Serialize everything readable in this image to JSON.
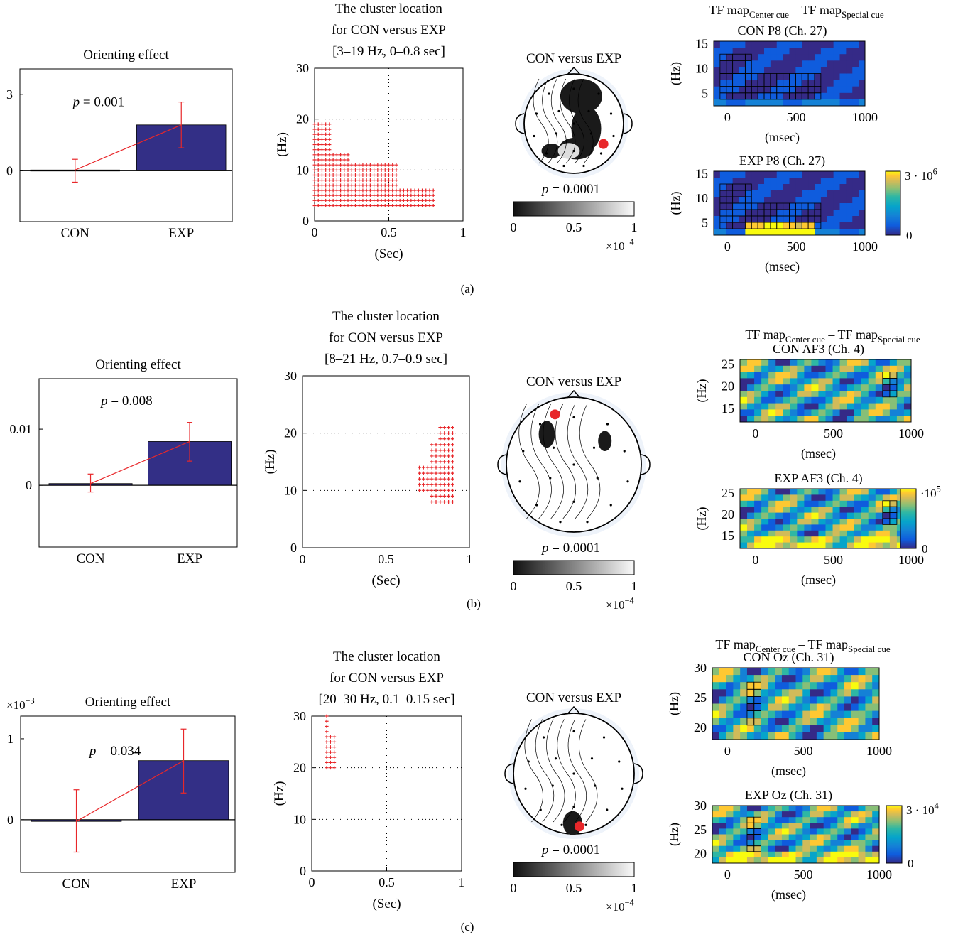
{
  "colors": {
    "bar": "#332f86",
    "cluster": "#e8272a",
    "errorbar": "#e8272a",
    "electrode": "#e8272a",
    "parula": [
      "#352a87",
      "#0f5cdd",
      "#1481d6",
      "#06a4ca",
      "#2eb7a4",
      "#87bf77",
      "#d1bb59",
      "#fec832",
      "#f9fb0e"
    ]
  },
  "panels": [
    {
      "label": "(a)",
      "bar": {
        "title": "Orienting effect",
        "categories": [
          "CON",
          "EXP"
        ],
        "values": [
          0.03,
          1.8
        ],
        "err_low": [
          -0.45,
          0.9
        ],
        "err_high": [
          0.45,
          2.7
        ],
        "ylim": [
          -2,
          4
        ],
        "yticks": [
          0,
          3
        ],
        "ytick_labels": [
          "0",
          "3"
        ],
        "p_text": "= 0.001",
        "p_pos": [
          0.35,
          2.7
        ]
      },
      "cluster": {
        "title_lines": [
          "The cluster location",
          "for CON versus EXP",
          "[3–19 Hz, 0–0.8 sec]"
        ],
        "xlabel": "(Sec)",
        "ylabel": "(Hz)",
        "xlim": [
          0,
          1
        ],
        "ylim": [
          0,
          30
        ],
        "xticks": [
          0,
          0.5,
          1
        ],
        "xtick_labels": [
          "0",
          "0.5",
          "1"
        ],
        "yticks": [
          0,
          10,
          20,
          30
        ],
        "ytick_labels": [
          "0",
          "10",
          "20",
          "30"
        ],
        "gridlines_x": [
          0.5
        ],
        "gridlines_y": [
          10,
          20
        ],
        "freq_range": [
          3,
          19
        ],
        "time_range": [
          0,
          0.8
        ]
      },
      "topo": {
        "title": "CON versus EXP",
        "p_text": "= 0.0001",
        "cbar_ticks": [
          "0",
          "0.5",
          "1"
        ],
        "cbar_exp": "×10",
        "cbar_exp_power": "−4",
        "electrode": [
          0.82,
          0.72
        ]
      },
      "tf": {
        "header": [
          "TF map",
          "Center cue",
          " – TF map",
          "Special cue"
        ],
        "maps": [
          {
            "title": "CON P8 (Ch. 27)",
            "ylabel": "(Hz)",
            "xlabel": "(msec)",
            "ytick_labels": [
              "5",
              "10",
              "15"
            ],
            "yticks": [
              5,
              10,
              15
            ],
            "ylim": [
              2.5,
              15.5
            ],
            "xticks": [
              0,
              500,
              1000
            ],
            "xtick_labels": [
              "0",
              "500",
              "1000"
            ],
            "xlim": [
              -100,
              1000
            ]
          },
          {
            "title": "EXP P8 (Ch. 27)",
            "ylabel": "(Hz)",
            "xlabel": "(msec)",
            "ytick_labels": [
              "5",
              "10",
              "15"
            ],
            "yticks": [
              5,
              10,
              15
            ],
            "ylim": [
              2.5,
              15.5
            ],
            "xticks": [
              0,
              500,
              1000
            ],
            "xtick_labels": [
              "0",
              "500",
              "1000"
            ],
            "xlim": [
              -100,
              1000
            ]
          }
        ],
        "cbar_top": "3 · 10",
        "cbar_top_power": "6",
        "cbar_bottom": "0"
      }
    },
    {
      "label": "(b)",
      "bar": {
        "title": "Orienting effect",
        "categories": [
          "CON",
          "EXP"
        ],
        "values": [
          0.0003,
          0.0078
        ],
        "err_low": [
          -0.0012,
          0.0043
        ],
        "err_high": [
          0.002,
          0.0112
        ],
        "ylim": [
          -0.011,
          0.019
        ],
        "yticks": [
          0,
          0.01
        ],
        "ytick_labels": [
          "0",
          "0.01"
        ],
        "p_text": "= 0.008",
        "p_pos": [
          0.42,
          0.0151
        ]
      },
      "cluster": {
        "title_lines": [
          "The cluster location",
          "for CON versus EXP",
          "[8–21 Hz, 0.7–0.9 sec]"
        ],
        "xlabel": "(Sec)",
        "ylabel": "(Hz)",
        "xlim": [
          0,
          1
        ],
        "ylim": [
          0,
          30
        ],
        "xticks": [
          0,
          0.5,
          1
        ],
        "xtick_labels": [
          "0",
          "0.5",
          "1"
        ],
        "yticks": [
          0,
          10,
          20,
          30
        ],
        "ytick_labels": [
          "0",
          "10",
          "20",
          "30"
        ],
        "gridlines_x": [
          0.5
        ],
        "gridlines_y": [
          10,
          20
        ],
        "freq_range": [
          8,
          21
        ],
        "time_range": [
          0.7,
          0.9
        ]
      },
      "topo": {
        "title": "CON versus EXP",
        "p_text": "= 0.0001",
        "cbar_ticks": [
          "0",
          "0.5",
          "1"
        ],
        "cbar_exp": "×10",
        "cbar_exp_power": "−4",
        "electrode": [
          0.35,
          0.1
        ]
      },
      "tf": {
        "header": [
          "TF map",
          "Center cue",
          " – TF map",
          "Special cue"
        ],
        "maps": [
          {
            "title": "CON AF3 (Ch. 4)",
            "ylabel": "(Hz)",
            "xlabel": "(msec)",
            "ytick_labels": [
              "15",
              "20",
              "25"
            ],
            "yticks": [
              15,
              20,
              25
            ],
            "ylim": [
              12,
              26
            ],
            "xticks": [
              0,
              500,
              1000
            ],
            "xtick_labels": [
              "0",
              "500",
              "1000"
            ],
            "xlim": [
              -100,
              1000
            ]
          },
          {
            "title": "EXP AF3 (Ch. 4)",
            "ylabel": "(Hz)",
            "xlabel": "(msec)",
            "ytick_labels": [
              "15",
              "20",
              "25"
            ],
            "yticks": [
              15,
              20,
              25
            ],
            "ylim": [
              12,
              26
            ],
            "xticks": [
              0,
              500,
              1000
            ],
            "xtick_labels": [
              "0",
              "500",
              "1000"
            ],
            "xlim": [
              -100,
              1000
            ]
          }
        ],
        "cbar_top": "·10",
        "cbar_top_power": "5",
        "cbar_bottom": "0"
      }
    },
    {
      "label": "(c)",
      "bar": {
        "title": "Orienting effect",
        "exp_label": "×10",
        "exp_power": "−3",
        "categories": [
          "CON",
          "EXP"
        ],
        "values": [
          -0.02,
          0.73
        ],
        "err_low": [
          -0.4,
          0.33
        ],
        "err_high": [
          0.37,
          1.12
        ],
        "ylim": [
          -0.65,
          1.28
        ],
        "yticks": [
          0,
          1
        ],
        "ytick_labels": [
          "0",
          "1"
        ],
        "p_text": "= 0.034",
        "p_pos": [
          0.42,
          0.85
        ]
      },
      "cluster": {
        "title_lines": [
          "The cluster location",
          "for CON versus EXP",
          "[20–30 Hz, 0.1–0.15 sec]"
        ],
        "xlabel": "(Sec)",
        "ylabel": "(Hz)",
        "xlim": [
          0,
          1
        ],
        "ylim": [
          0,
          30
        ],
        "xticks": [
          0,
          0.5,
          1
        ],
        "xtick_labels": [
          "0",
          "0.5",
          "1"
        ],
        "yticks": [
          0,
          10,
          20,
          30
        ],
        "ytick_labels": [
          "0",
          "10",
          "20",
          "30"
        ],
        "gridlines_x": [
          0.5
        ],
        "gridlines_y": [
          10,
          20
        ],
        "freq_range": [
          20,
          30
        ],
        "time_range": [
          0.1,
          0.15
        ]
      },
      "topo": {
        "title": "CON versus EXP",
        "p_text": "= 0.0001",
        "cbar_ticks": [
          "0",
          "0.5",
          "1"
        ],
        "cbar_exp": "×10",
        "cbar_exp_power": "−4",
        "electrode": [
          0.55,
          0.97
        ]
      },
      "tf": {
        "header": [
          "TF map",
          "Center cue",
          " – TF map",
          "Special cue"
        ],
        "maps": [
          {
            "title": "CON Oz (Ch. 31)",
            "ylabel": "(Hz)",
            "xlabel": "(msec)",
            "ytick_labels": [
              "20",
              "25",
              "30"
            ],
            "yticks": [
              20,
              25,
              30
            ],
            "ylim": [
              18,
              30
            ],
            "xticks": [
              0,
              500,
              1000
            ],
            "xtick_labels": [
              "0",
              "500",
              "1000"
            ],
            "xlim": [
              -100,
              1000
            ]
          },
          {
            "title": "EXP Oz (Ch. 31)",
            "ylabel": "(Hz)",
            "xlabel": "(msec)",
            "ytick_labels": [
              "20",
              "25",
              "30"
            ],
            "yticks": [
              20,
              25,
              30
            ],
            "ylim": [
              18,
              30
            ],
            "xticks": [
              0,
              500,
              1000
            ],
            "xtick_labels": [
              "0",
              "500",
              "1000"
            ],
            "xlim": [
              -100,
              1000
            ]
          }
        ],
        "cbar_top": "3 · 10",
        "cbar_top_power": "4",
        "cbar_bottom": "0"
      }
    }
  ],
  "chart_data": [
    {
      "type": "bar",
      "title": "Orienting effect",
      "categories": [
        "CON",
        "EXP"
      ],
      "values": [
        0.03,
        1.8
      ],
      "error_bars": [
        [
          -0.45,
          0.45
        ],
        [
          0.9,
          2.7
        ]
      ],
      "annotation": "p = 0.001",
      "ylim": [
        -2,
        4
      ]
    },
    {
      "type": "scatter",
      "title": "The cluster location for CON versus EXP [3–19 Hz, 0–0.8 sec]",
      "xlabel": "(Sec)",
      "ylabel": "(Hz)",
      "x_range": [
        0,
        0.8
      ],
      "y_range": [
        3,
        19
      ],
      "xlim": [
        0,
        1
      ],
      "ylim": [
        0,
        30
      ]
    },
    {
      "type": "heatmap",
      "title": "CON versus EXP",
      "annotation": "p = 0.0001",
      "colorbar_range": [
        0,
        0.0001
      ]
    },
    {
      "type": "heatmap",
      "title": "CON P8 (Ch. 27)",
      "ylabel": "(Hz)",
      "xlabel": "(msec)",
      "xlim": [
        -100,
        1000
      ]
    },
    {
      "type": "heatmap",
      "title": "EXP P8 (Ch. 27)",
      "ylabel": "(Hz)",
      "xlabel": "(msec)",
      "xlim": [
        -100,
        1000
      ],
      "colorbar_range": [
        0,
        3000000
      ]
    },
    {
      "type": "bar",
      "title": "Orienting effect",
      "categories": [
        "CON",
        "EXP"
      ],
      "values": [
        0.0003,
        0.0078
      ],
      "error_bars": [
        [
          -0.0012,
          0.002
        ],
        [
          0.0043,
          0.0112
        ]
      ],
      "annotation": "p = 0.008"
    },
    {
      "type": "scatter",
      "title": "The cluster location for CON versus EXP [8–21 Hz, 0.7–0.9 sec]",
      "xlabel": "(Sec)",
      "ylabel": "(Hz)",
      "x_range": [
        0.7,
        0.9
      ],
      "y_range": [
        8,
        21
      ],
      "xlim": [
        0,
        1
      ],
      "ylim": [
        0,
        30
      ]
    },
    {
      "type": "heatmap",
      "title": "CON versus EXP",
      "annotation": "p = 0.0001",
      "colorbar_range": [
        0,
        0.0001
      ]
    },
    {
      "type": "heatmap",
      "title": "CON AF3 (Ch. 4)",
      "ylabel": "(Hz)",
      "xlabel": "(msec)",
      "xlim": [
        -100,
        1000
      ]
    },
    {
      "type": "heatmap",
      "title": "EXP AF3 (Ch. 4)",
      "ylabel": "(Hz)",
      "xlabel": "(msec)",
      "xlim": [
        -100,
        1000
      ],
      "colorbar_range": [
        0,
        100000
      ]
    },
    {
      "type": "bar",
      "title": "Orienting effect",
      "categories": [
        "CON",
        "EXP"
      ],
      "values": [
        -2e-05,
        0.00073
      ],
      "error_bars": [
        [
          -0.0004,
          0.00037
        ],
        [
          0.00033,
          0.00112
        ]
      ],
      "annotation": "p = 0.034"
    },
    {
      "type": "scatter",
      "title": "The cluster location for CON versus EXP [20–30 Hz, 0.1–0.15 sec]",
      "xlabel": "(Sec)",
      "ylabel": "(Hz)",
      "x_range": [
        0.1,
        0.15
      ],
      "y_range": [
        20,
        30
      ],
      "xlim": [
        0,
        1
      ],
      "ylim": [
        0,
        30
      ]
    },
    {
      "type": "heatmap",
      "title": "CON versus EXP",
      "annotation": "p = 0.0001",
      "colorbar_range": [
        0,
        0.0001
      ]
    },
    {
      "type": "heatmap",
      "title": "CON Oz (Ch. 31)",
      "ylabel": "(Hz)",
      "xlabel": "(msec)",
      "xlim": [
        -100,
        1000
      ]
    },
    {
      "type": "heatmap",
      "title": "EXP Oz (Ch. 31)",
      "ylabel": "(Hz)",
      "xlabel": "(msec)",
      "xlim": [
        -100,
        1000
      ],
      "colorbar_range": [
        0,
        30000
      ]
    }
  ]
}
